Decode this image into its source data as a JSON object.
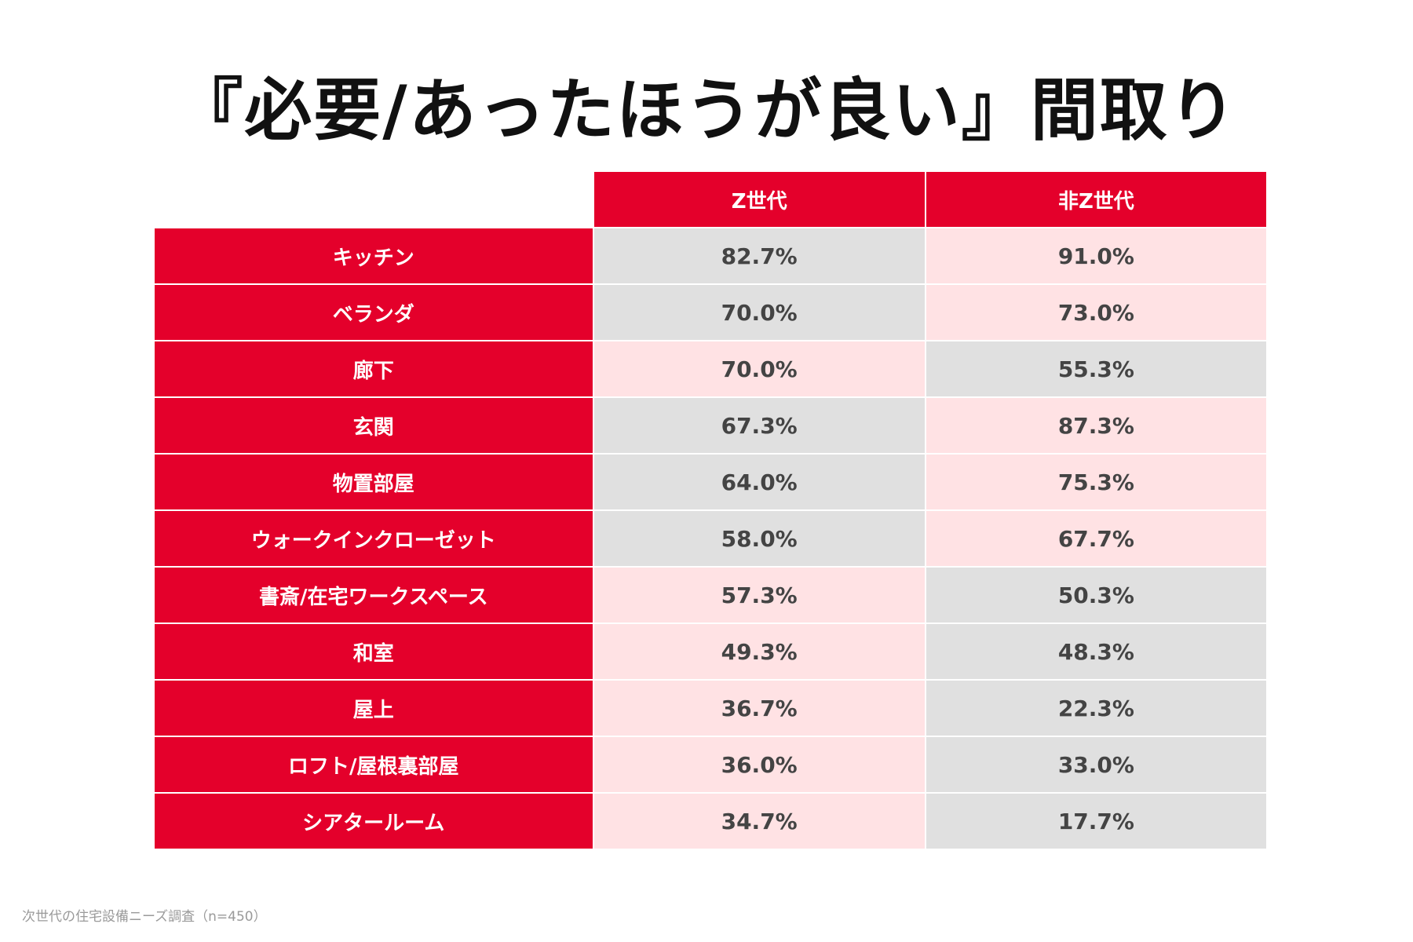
{
  "title": "『必要/あったほうが良い』間取り",
  "source": "次世代の住宅設備ニーズ調査（n=450）",
  "colors": {
    "accent": "#e4002b",
    "higher_cell": "#ffe2e4",
    "lower_cell": "#e0e0e0"
  },
  "chart_data": {
    "type": "table",
    "title": "『必要/あったほうが良い』間取り",
    "columns": [
      "Z世代",
      "非Z世代"
    ],
    "rows": [
      {
        "label": "キッチン",
        "values": [
          "82.7%",
          "91.0%"
        ],
        "highlight": [
          false,
          true
        ]
      },
      {
        "label": "ベランダ",
        "values": [
          "70.0%",
          "73.0%"
        ],
        "highlight": [
          false,
          true
        ]
      },
      {
        "label": "廊下",
        "values": [
          "70.0%",
          "55.3%"
        ],
        "highlight": [
          true,
          false
        ]
      },
      {
        "label": "玄関",
        "values": [
          "67.3%",
          "87.3%"
        ],
        "highlight": [
          false,
          true
        ]
      },
      {
        "label": "物置部屋",
        "values": [
          "64.0%",
          "75.3%"
        ],
        "highlight": [
          false,
          true
        ]
      },
      {
        "label": "ウォークインクローゼット",
        "values": [
          "58.0%",
          "67.7%"
        ],
        "highlight": [
          false,
          true
        ]
      },
      {
        "label": "書斎/在宅ワークスペース",
        "values": [
          "57.3%",
          "50.3%"
        ],
        "highlight": [
          true,
          false
        ]
      },
      {
        "label": "和室",
        "values": [
          "49.3%",
          "48.3%"
        ],
        "highlight": [
          true,
          false
        ]
      },
      {
        "label": "屋上",
        "values": [
          "36.7%",
          "22.3%"
        ],
        "highlight": [
          true,
          false
        ]
      },
      {
        "label": "ロフト/屋根裏部屋",
        "values": [
          "36.0%",
          "33.0%"
        ],
        "highlight": [
          true,
          false
        ]
      },
      {
        "label": "シアタールーム",
        "values": [
          "34.7%",
          "17.7%"
        ],
        "highlight": [
          true,
          false
        ]
      }
    ]
  }
}
